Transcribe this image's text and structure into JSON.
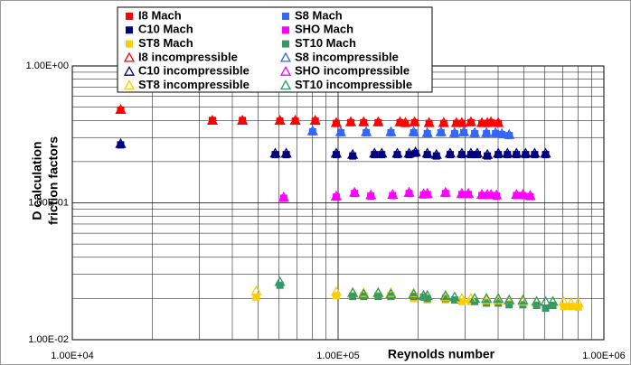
{
  "chart_data": {
    "type": "scatter",
    "x_label": "Reynolds number",
    "y_label": [
      "D calculation",
      "friction factors"
    ],
    "xlog": true,
    "ylog": true,
    "grid": true,
    "minor_grid": true,
    "legend": "upper left",
    "xlim": [
      10000,
      1000000
    ],
    "ylim": [
      0.01,
      1
    ],
    "xticks": [
      {
        "value": 10000,
        "label": "1.00E+04"
      },
      {
        "value": 100000,
        "label": "1.00E+05"
      },
      {
        "value": 1000000,
        "label": "1.00E+06"
      }
    ],
    "yticks": [
      {
        "value": 0.01,
        "label": "1.00E-02"
      },
      {
        "value": 0.1,
        "label": "1.00E-01"
      },
      {
        "value": 1,
        "label": "1.00E+00"
      }
    ],
    "series": [
      {
        "name": "I8 Mach",
        "color": "#ff0000",
        "marker": "square",
        "x": [
          15200,
          33650,
          43650,
          60400,
          69000,
          82000,
          98400,
          111600,
          124800,
          141500,
          171000,
          179200,
          194000,
          220000,
          249600,
          278700,
          292200,
          316000,
          347600,
          364500,
          376000,
          400600
        ],
        "values": [
          0.475,
          0.4,
          0.4,
          0.395,
          0.395,
          0.395,
          0.38,
          0.385,
          0.385,
          0.385,
          0.385,
          0.38,
          0.385,
          0.38,
          0.38,
          0.38,
          0.38,
          0.385,
          0.38,
          0.38,
          0.385,
          0.38
        ]
      },
      {
        "name": "S8 Mach",
        "color": "#3366ff",
        "marker": "square",
        "x": [
          80200,
          102300,
          127600,
          158000,
          192500,
          216600,
          243900,
          274400,
          297000,
          326500,
          361700,
          391200,
          413100,
          440200
        ],
        "values": [
          0.33,
          0.325,
          0.325,
          0.325,
          0.325,
          0.32,
          0.325,
          0.32,
          0.325,
          0.32,
          0.32,
          0.32,
          0.315,
          0.31
        ]
      },
      {
        "name": "C10 Mach",
        "color": "#000080",
        "marker": "square",
        "x": [
          15200,
          58000,
          63800,
          98400,
          113500,
          137100,
          146000,
          167000,
          185000,
          195500,
          216600,
          234400,
          264000,
          292200,
          316000,
          334000,
          364500,
          400600,
          433600,
          469000,
          507500,
          549000,
          603600
        ],
        "values": [
          0.265,
          0.225,
          0.225,
          0.225,
          0.22,
          0.225,
          0.225,
          0.225,
          0.225,
          0.23,
          0.225,
          0.22,
          0.225,
          0.225,
          0.225,
          0.225,
          0.22,
          0.225,
          0.225,
          0.225,
          0.225,
          0.225,
          0.225
        ]
      },
      {
        "name": "SHO Mach",
        "color": "#ff00ff",
        "marker": "square",
        "x": [
          62400,
          98400,
          115300,
          132800,
          160400,
          185000,
          209700,
          216600,
          253600,
          292200,
          309000,
          347600,
          364500,
          376000,
          394400,
          469000,
          495700,
          528000
        ],
        "values": [
          0.108,
          0.11,
          0.117,
          0.112,
          0.113,
          0.117,
          0.114,
          0.115,
          0.117,
          0.115,
          0.115,
          0.113,
          0.113,
          0.113,
          0.112,
          0.113,
          0.113,
          0.111
        ]
      },
      {
        "name": "ST8 Mach",
        "color": "#ffcc00",
        "marker": "square",
        "x": [
          49200,
          98400,
          113500,
          124800,
          141500,
          158000,
          192500,
          209700,
          216600,
          253600,
          292200,
          316000,
          361700,
          400600,
          440200,
          495700,
          558500,
          642700,
          706000,
          753000,
          802000
        ],
        "values": [
          0.0205,
          0.021,
          0.021,
          0.021,
          0.021,
          0.021,
          0.02,
          0.0205,
          0.0195,
          0.0195,
          0.019,
          0.019,
          0.019,
          0.0185,
          0.0185,
          0.018,
          0.018,
          0.0178,
          0.0175,
          0.0175,
          0.0173
        ]
      },
      {
        "name": "ST10 Mach",
        "color": "#339966",
        "marker": "square",
        "x": [
          60400,
          113500,
          124800,
          141500,
          158000,
          192500,
          209700,
          216600,
          253600,
          274400,
          326500,
          361700,
          400600,
          440200,
          495700,
          558500,
          603600,
          642700
        ],
        "values": [
          0.025,
          0.0207,
          0.0207,
          0.0207,
          0.0207,
          0.0207,
          0.0205,
          0.02,
          0.02,
          0.0195,
          0.019,
          0.0185,
          0.0185,
          0.018,
          0.018,
          0.0178,
          0.017,
          0.0178
        ]
      },
      {
        "name": "I8 incompressible",
        "color": "#ff0000",
        "marker": "triangle",
        "x": [
          15200,
          33650,
          43650,
          60400,
          69000,
          82000,
          98400,
          111600,
          124800,
          141500,
          171000,
          179200,
          194000,
          220000,
          249600,
          278700,
          292200,
          316000,
          347600,
          364500,
          376000,
          400600
        ],
        "values": [
          0.48,
          0.4,
          0.4,
          0.4,
          0.4,
          0.4,
          0.385,
          0.39,
          0.39,
          0.39,
          0.39,
          0.385,
          0.39,
          0.385,
          0.385,
          0.385,
          0.385,
          0.39,
          0.385,
          0.385,
          0.39,
          0.385
        ]
      },
      {
        "name": "S8 incompressible",
        "color": "#3366ff",
        "marker": "triangle",
        "x": [
          80200,
          102300,
          127600,
          158000,
          192500,
          216600,
          243900,
          274400,
          297000,
          326500,
          361700,
          391200,
          413100,
          440200
        ],
        "values": [
          0.335,
          0.33,
          0.33,
          0.33,
          0.33,
          0.325,
          0.33,
          0.325,
          0.33,
          0.325,
          0.325,
          0.325,
          0.32,
          0.315
        ]
      },
      {
        "name": "C10 incompressible",
        "color": "#000080",
        "marker": "triangle",
        "x": [
          15200,
          58000,
          63800,
          98400,
          113500,
          137100,
          146000,
          167000,
          185000,
          195500,
          216600,
          234400,
          264000,
          292200,
          316000,
          334000,
          364500,
          400600,
          433600,
          469000,
          507500,
          549000,
          603600
        ],
        "values": [
          0.27,
          0.23,
          0.23,
          0.23,
          0.225,
          0.23,
          0.23,
          0.23,
          0.23,
          0.235,
          0.23,
          0.225,
          0.23,
          0.23,
          0.23,
          0.23,
          0.225,
          0.23,
          0.23,
          0.23,
          0.23,
          0.23,
          0.23
        ]
      },
      {
        "name": "SHO incompressible",
        "color": "#ff00ff",
        "marker": "triangle",
        "x": [
          62400,
          98400,
          115300,
          132800,
          160400,
          185000,
          209700,
          216600,
          253600,
          292200,
          309000,
          347600,
          364500,
          376000,
          394400,
          469000,
          495700,
          528000
        ],
        "values": [
          0.11,
          0.112,
          0.119,
          0.114,
          0.115,
          0.119,
          0.116,
          0.117,
          0.119,
          0.117,
          0.117,
          0.115,
          0.115,
          0.115,
          0.114,
          0.115,
          0.115,
          0.113
        ]
      },
      {
        "name": "ST8 incompressible",
        "color": "#ffcc00",
        "marker": "triangle",
        "x": [
          49200,
          98400,
          113500,
          124800,
          141500,
          158000,
          192500,
          209700,
          216600,
          253600,
          292200,
          316000,
          361700,
          400600,
          440200,
          495700,
          558500,
          642700,
          706000,
          753000,
          802000
        ],
        "values": [
          0.0227,
          0.0224,
          0.022,
          0.022,
          0.022,
          0.022,
          0.0218,
          0.021,
          0.021,
          0.0205,
          0.02,
          0.02,
          0.0195,
          0.0195,
          0.0195,
          0.019,
          0.019,
          0.019,
          0.019,
          0.0185,
          0.0185
        ]
      },
      {
        "name": "ST10 incompressible",
        "color": "#339966",
        "marker": "triangle",
        "x": [
          60400,
          113500,
          124800,
          141500,
          158000,
          192500,
          209700,
          216600,
          253600,
          274400,
          326500,
          361700,
          400600,
          440200,
          495700,
          558500,
          603600,
          642700
        ],
        "values": [
          0.0265,
          0.022,
          0.0215,
          0.022,
          0.0215,
          0.0215,
          0.021,
          0.021,
          0.021,
          0.0205,
          0.02,
          0.02,
          0.02,
          0.0195,
          0.0195,
          0.019,
          0.019,
          0.019
        ]
      }
    ]
  }
}
